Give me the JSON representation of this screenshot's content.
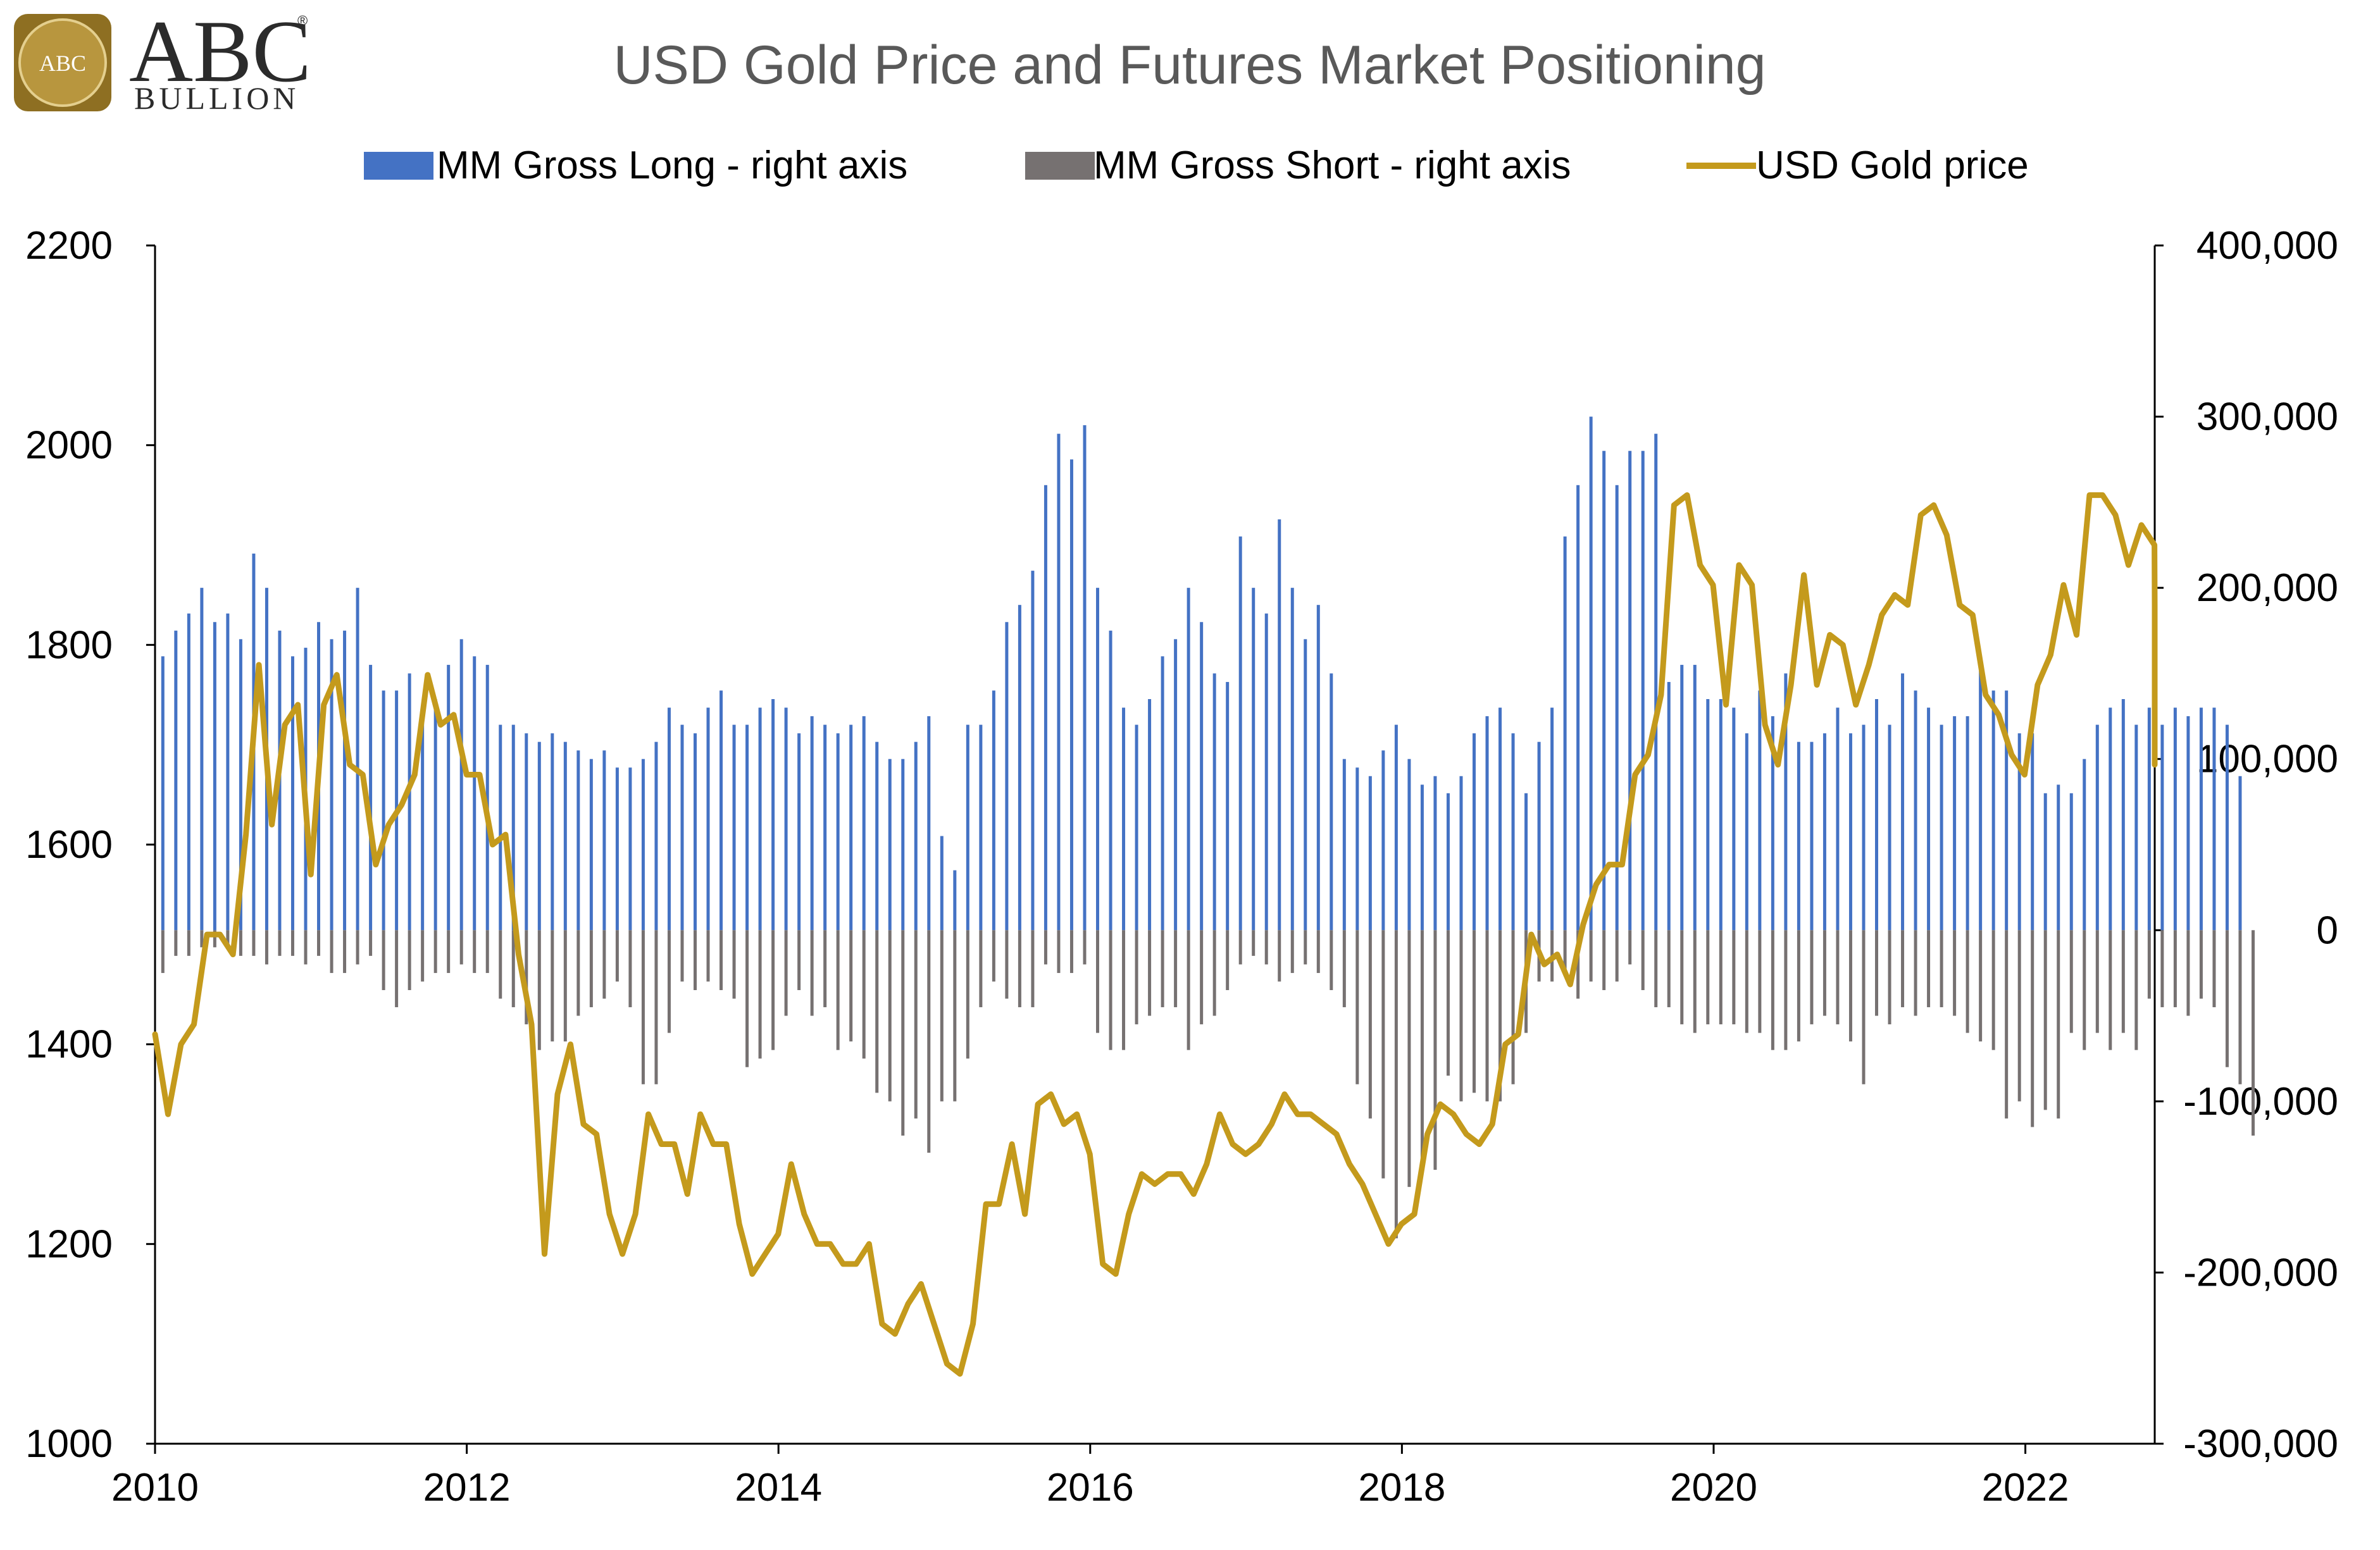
{
  "logo": {
    "seal_text": "ABC",
    "brand_main": "ABC",
    "brand_sub": "BULLION",
    "registered_mark": "®",
    "color_gold": "#B8963E",
    "color_gold_dark": "#8E6F22"
  },
  "chart_data": {
    "type": "bar+line",
    "title": "USD Gold Price and Futures Market Positioning",
    "legend": [
      {
        "label": "MM Gross Long -  right axis",
        "color": "#4472C4",
        "kind": "bar"
      },
      {
        "label": "MM Gross Short - right axis",
        "color": "#767171",
        "kind": "bar"
      },
      {
        "label": "USD Gold price",
        "color": "#C49A1C",
        "kind": "line"
      }
    ],
    "x_axis": {
      "min": 2010.0,
      "max": 2022.83,
      "ticks": [
        "2010",
        "2012",
        "2014",
        "2016",
        "2018",
        "2020",
        "2022"
      ],
      "tick_values": [
        2010,
        2012,
        2014,
        2016,
        2018,
        2020,
        2022
      ]
    },
    "y_left": {
      "min": 1000,
      "max": 2200,
      "ticks": [
        "1000",
        "1200",
        "1400",
        "1600",
        "1800",
        "2000",
        "2200"
      ],
      "tick_values": [
        1000,
        1200,
        1400,
        1600,
        1800,
        2000,
        2200
      ]
    },
    "y_right": {
      "min": -300000,
      "max": 400000,
      "ticks": [
        "-300,000",
        "-200,000",
        "-100,000",
        "0",
        "100,000",
        "200,000",
        "300,000",
        "400,000"
      ],
      "tick_values": [
        -300000,
        -200000,
        -100000,
        0,
        100000,
        200000,
        300000,
        400000
      ]
    },
    "gold_price": {
      "start": 2010.0,
      "step": 0.0833,
      "values": [
        1410,
        1330,
        1400,
        1420,
        1510,
        1510,
        1490,
        1610,
        1780,
        1620,
        1720,
        1740,
        1570,
        1740,
        1770,
        1680,
        1670,
        1580,
        1620,
        1640,
        1670,
        1770,
        1720,
        1730,
        1670,
        1670,
        1600,
        1610,
        1490,
        1420,
        1190,
        1350,
        1400,
        1320,
        1310,
        1230,
        1190,
        1230,
        1330,
        1300,
        1300,
        1250,
        1330,
        1300,
        1300,
        1220,
        1170,
        1190,
        1210,
        1280,
        1230,
        1200,
        1200,
        1180,
        1180,
        1200,
        1120,
        1110,
        1140,
        1160,
        1120,
        1080,
        1070,
        1120,
        1240,
        1240,
        1300,
        1230,
        1340,
        1350,
        1320,
        1330,
        1290,
        1180,
        1170,
        1230,
        1270,
        1260,
        1270,
        1270,
        1250,
        1280,
        1330,
        1300,
        1290,
        1300,
        1320,
        1350,
        1330,
        1330,
        1320,
        1310,
        1280,
        1260,
        1230,
        1200,
        1220,
        1230,
        1310,
        1340,
        1330,
        1310,
        1300,
        1320,
        1400,
        1410,
        1510,
        1480,
        1490,
        1460,
        1520,
        1560,
        1580,
        1580,
        1670,
        1690,
        1750,
        1940,
        1950,
        1880,
        1860,
        1740,
        1880,
        1860,
        1720,
        1680,
        1760,
        1870,
        1760,
        1810,
        1800,
        1740,
        1780,
        1830,
        1850,
        1840,
        1930,
        1940,
        1910,
        1840,
        1830,
        1750,
        1730,
        1690,
        1670,
        1760,
        1790,
        1860,
        1810,
        1950,
        1950,
        1930,
        1880,
        1920,
        1900,
        1840,
        1680
      ]
    },
    "mm_gross_long": {
      "start": 2010.05,
      "step": 0.0833,
      "values": [
        160000,
        175000,
        185000,
        200000,
        180000,
        185000,
        170000,
        220000,
        200000,
        175000,
        160000,
        165000,
        180000,
        170000,
        175000,
        200000,
        155000,
        140000,
        140000,
        150000,
        130000,
        135000,
        155000,
        170000,
        160000,
        155000,
        120000,
        120000,
        115000,
        110000,
        115000,
        110000,
        105000,
        100000,
        105000,
        95000,
        95000,
        100000,
        110000,
        130000,
        120000,
        115000,
        130000,
        140000,
        120000,
        120000,
        130000,
        135000,
        130000,
        115000,
        125000,
        120000,
        115000,
        120000,
        125000,
        110000,
        100000,
        100000,
        110000,
        125000,
        55000,
        35000,
        120000,
        120000,
        140000,
        180000,
        190000,
        210000,
        260000,
        290000,
        275000,
        295000,
        200000,
        175000,
        130000,
        120000,
        135000,
        160000,
        170000,
        200000,
        180000,
        150000,
        145000,
        230000,
        200000,
        185000,
        240000,
        200000,
        170000,
        190000,
        150000,
        100000,
        95000,
        90000,
        105000,
        120000,
        100000,
        85000,
        90000,
        80000,
        90000,
        115000,
        125000,
        130000,
        115000,
        80000,
        110000,
        130000,
        230000,
        260000,
        300000,
        280000,
        260000,
        280000,
        280000,
        290000,
        145000,
        155000,
        155000,
        135000,
        135000,
        130000,
        115000,
        140000,
        125000,
        150000,
        110000,
        110000,
        115000,
        130000,
        115000,
        120000,
        135000,
        120000,
        150000,
        140000,
        130000,
        120000,
        125000,
        125000,
        155000,
        140000,
        140000,
        115000,
        115000,
        80000,
        85000,
        80000,
        100000,
        120000,
        130000,
        135000,
        120000,
        130000,
        120000,
        130000,
        125000,
        130000,
        130000,
        120000,
        90000
      ]
    },
    "mm_gross_short": {
      "start": 2010.05,
      "step": 0.0833,
      "values": [
        -25000,
        -15000,
        -15000,
        -10000,
        -10000,
        -10000,
        -15000,
        -15000,
        -20000,
        -15000,
        -15000,
        -20000,
        -15000,
        -25000,
        -25000,
        -20000,
        -15000,
        -35000,
        -45000,
        -35000,
        -30000,
        -25000,
        -25000,
        -20000,
        -25000,
        -25000,
        -40000,
        -45000,
        -55000,
        -70000,
        -65000,
        -65000,
        -50000,
        -45000,
        -40000,
        -30000,
        -45000,
        -90000,
        -90000,
        -60000,
        -30000,
        -35000,
        -30000,
        -35000,
        -40000,
        -80000,
        -75000,
        -70000,
        -50000,
        -35000,
        -50000,
        -45000,
        -70000,
        -65000,
        -75000,
        -95000,
        -100000,
        -120000,
        -110000,
        -130000,
        -100000,
        -100000,
        -75000,
        -45000,
        -30000,
        -40000,
        -45000,
        -45000,
        -20000,
        -25000,
        -25000,
        -20000,
        -60000,
        -70000,
        -70000,
        -55000,
        -50000,
        -45000,
        -45000,
        -70000,
        -55000,
        -50000,
        -35000,
        -20000,
        -15000,
        -20000,
        -30000,
        -25000,
        -20000,
        -25000,
        -35000,
        -45000,
        -90000,
        -110000,
        -145000,
        -180000,
        -150000,
        -135000,
        -140000,
        -85000,
        -100000,
        -95000,
        -100000,
        -100000,
        -90000,
        -60000,
        -30000,
        -30000,
        -25000,
        -40000,
        -30000,
        -35000,
        -30000,
        -20000,
        -35000,
        -45000,
        -45000,
        -55000,
        -60000,
        -55000,
        -55000,
        -55000,
        -60000,
        -60000,
        -70000,
        -70000,
        -65000,
        -55000,
        -50000,
        -55000,
        -65000,
        -90000,
        -50000,
        -55000,
        -45000,
        -50000,
        -45000,
        -45000,
        -50000,
        -60000,
        -65000,
        -70000,
        -110000,
        -100000,
        -115000,
        -105000,
        -110000,
        -60000,
        -70000,
        -60000,
        -70000,
        -60000,
        -70000,
        -40000,
        -45000,
        -45000,
        -50000,
        -40000,
        -45000,
        -80000,
        -90000,
        -120000
      ]
    }
  }
}
